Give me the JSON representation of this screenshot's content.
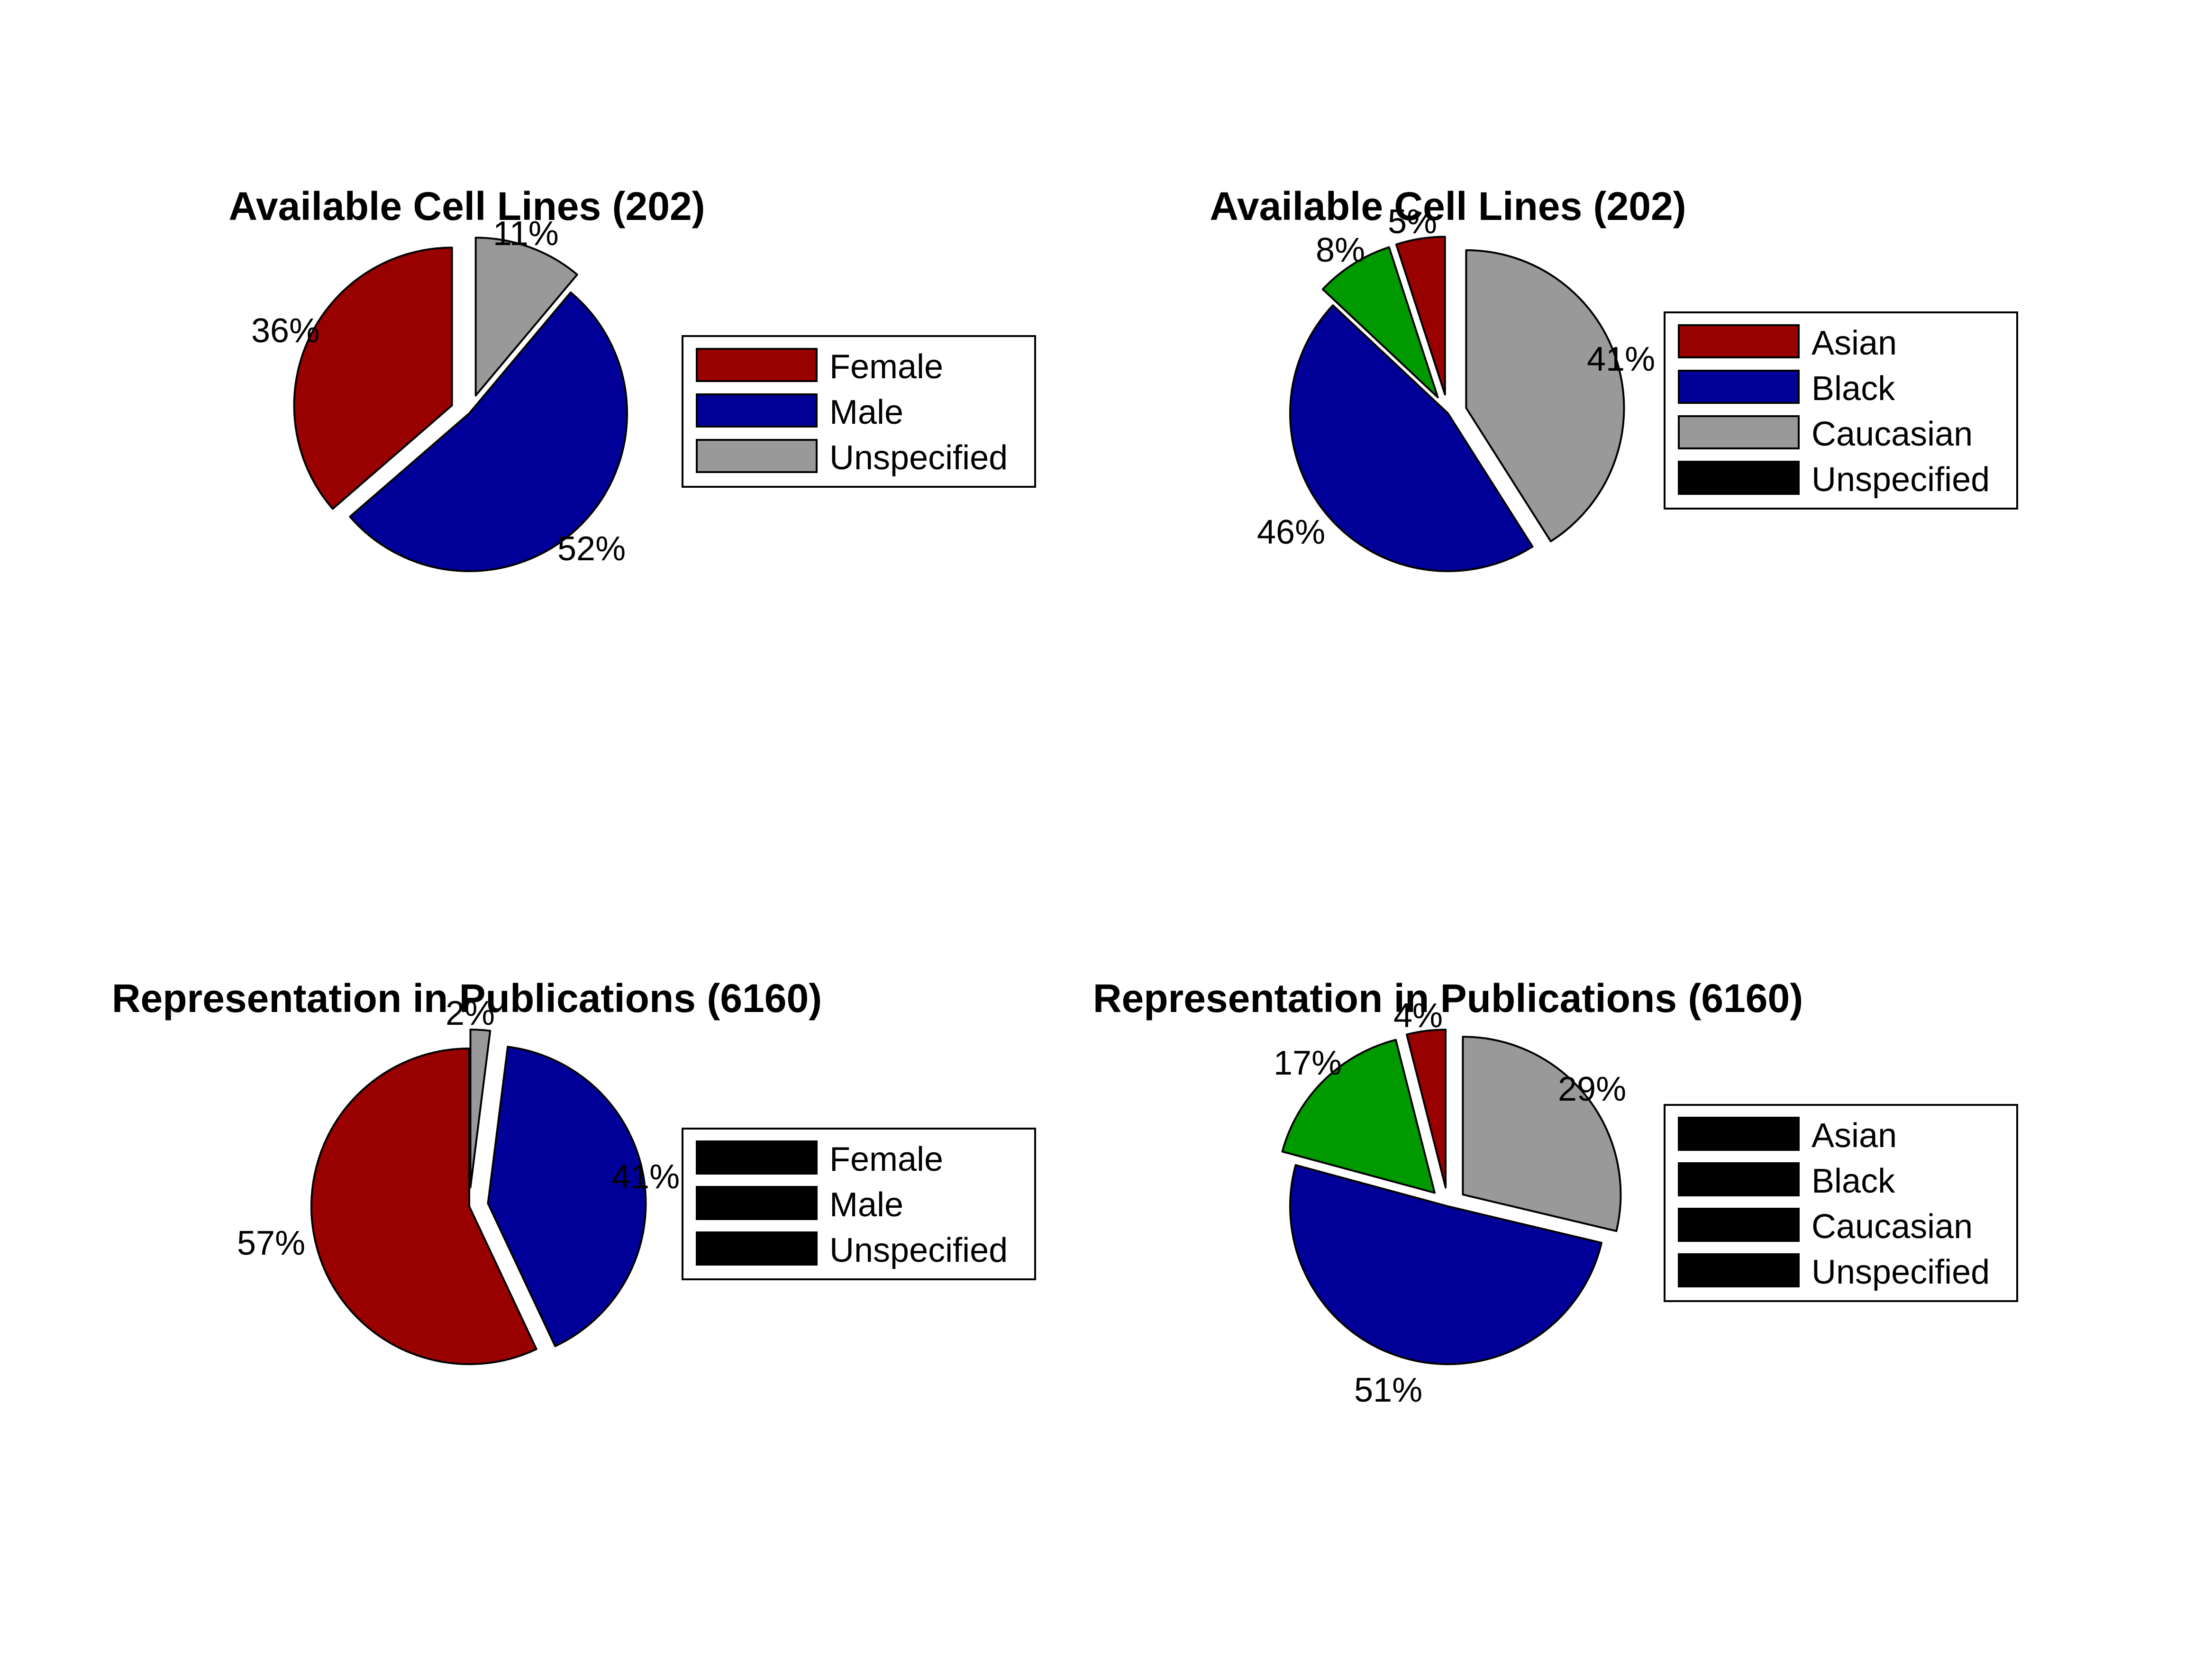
{
  "chart_data": [
    {
      "type": "pie",
      "title": "Available Cell Lines (202)",
      "categories": [
        "Female",
        "Male",
        "Unspecified"
      ],
      "values": [
        36,
        52,
        11
      ],
      "labels": [
        "36%",
        "52%",
        "11%"
      ],
      "colors": [
        "#990000",
        "#000099",
        "#999999"
      ],
      "exploded": [
        true,
        false,
        true
      ],
      "legend": "right"
    },
    {
      "type": "pie",
      "title": "Available Cell Lines (202)",
      "categories": [
        "Asian",
        "Black",
        "Caucasian",
        "Unspecified"
      ],
      "values": [
        5,
        8,
        46,
        41
      ],
      "labels": [
        "5%",
        "8%",
        "46%",
        "41%"
      ],
      "colors": [
        "#990000",
        "#009900",
        "#000099",
        "#999999"
      ],
      "exploded": [
        true,
        true,
        false,
        true
      ],
      "legend": "right"
    },
    {
      "type": "pie",
      "title": "Representation in Publications (6160)",
      "categories": [
        "Female",
        "Male",
        "Unspecified"
      ],
      "values": [
        57,
        41,
        2
      ],
      "labels": [
        "57%",
        "41%",
        "2%"
      ],
      "colors": [
        "#990000",
        "#000099",
        "#999999"
      ],
      "exploded": [
        false,
        true,
        true
      ],
      "legend": "right"
    },
    {
      "type": "pie",
      "title": "Representation in Publications (6160)",
      "categories": [
        "Asian",
        "Black",
        "Caucasian",
        "Unspecified"
      ],
      "values": [
        4,
        17,
        51,
        29
      ],
      "labels": [
        "4%",
        "17%",
        "51%",
        "29%"
      ],
      "colors": [
        "#990000",
        "#009900",
        "#000099",
        "#999999"
      ],
      "exploded": [
        true,
        true,
        false,
        true
      ],
      "legend": "right"
    }
  ]
}
